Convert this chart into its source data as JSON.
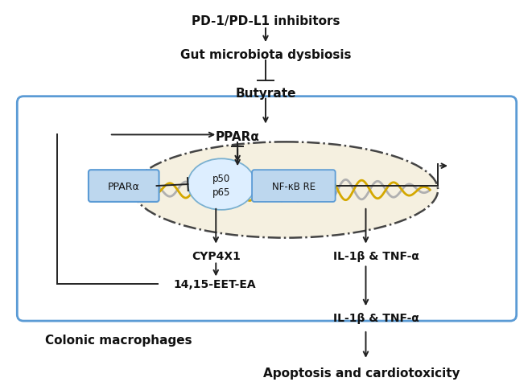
{
  "fig_width": 6.61,
  "fig_height": 4.81,
  "bg_color": "#ffffff",
  "box_color": "#5b9bd5",
  "texts": {
    "pd1": "PD-1/PD-L1 inhibitors",
    "gut": "Gut microbiota dysbiosis",
    "butyrate": "Butyrate",
    "ppara_top": "PPARα",
    "ppara_box": "PPARα",
    "p50": "p50",
    "p65": "p65",
    "nfkb": "NF-κB RE",
    "cyp4x1": "CYP4X1",
    "eet": "14,15-EET-EA",
    "il1b_inside": "IL-1β & TNF-α",
    "colonic": "Colonic macrophages",
    "il1b_outside": "IL-1β & TNF-α",
    "apoptosis": "Apoptosis and cardiotoxicity"
  },
  "arrow_color": "#222222",
  "dna_color_gray": "#b0b0b0",
  "dna_color_yellow": "#d4a800",
  "ppara_box_fill": "#bdd7ee",
  "p50p65_fill": "#ddeeff",
  "p50p65_edge": "#7ab0d0",
  "nfkb_fill": "#bdd7ee",
  "nfkb_edge": "#5b9bd5",
  "nucleus_fill": "#f5f0e0",
  "nucleus_edge": "#444444"
}
